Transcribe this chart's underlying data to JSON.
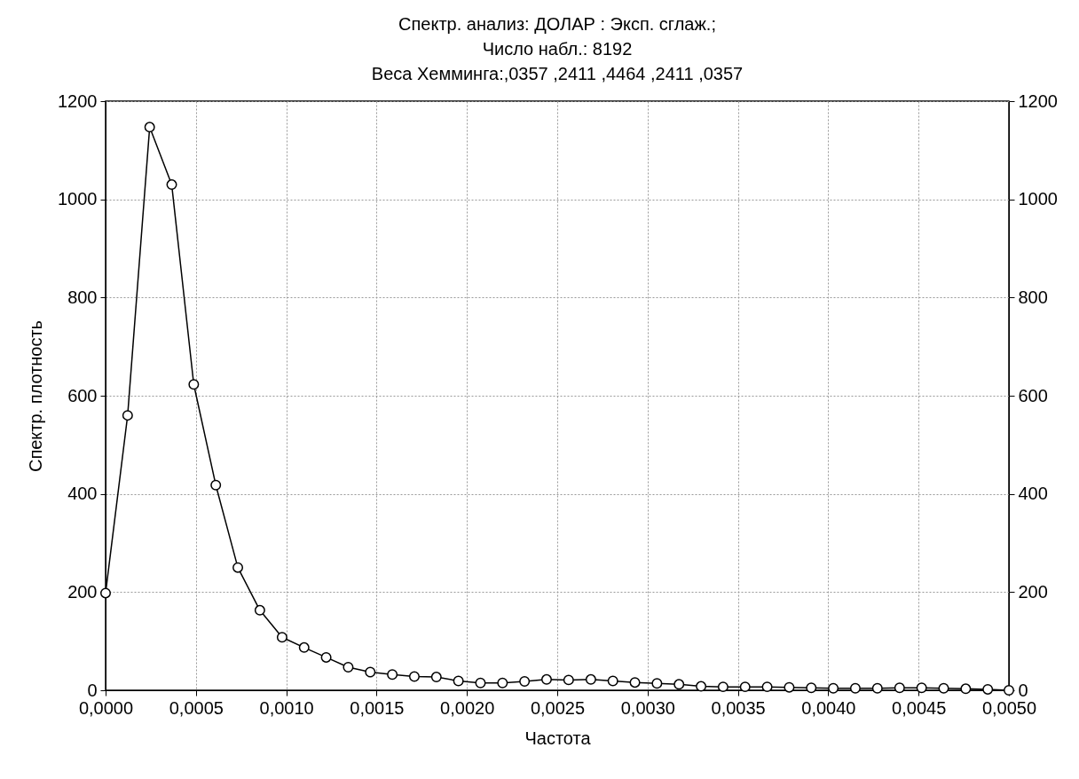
{
  "chart_data": {
    "type": "line",
    "title": "Спектр. анализ: ДОЛАР   : Эксп. сглаж.;\nЧисло набл.: 8192\nВеса Хемминга:,0357 ,2411 ,4464 ,2411 ,0357",
    "xlabel": "Частота",
    "ylabel": "Спектр. плотность",
    "x": [
      0,
      0.000122,
      0.000244,
      0.000366,
      0.000488,
      0.00061,
      0.000732,
      0.000854,
      0.000977,
      0.001099,
      0.001221,
      0.001343,
      0.001465,
      0.001587,
      0.001709,
      0.001831,
      0.001953,
      0.002075,
      0.002197,
      0.002319,
      0.002441,
      0.002563,
      0.002686,
      0.002808,
      0.00293,
      0.003052,
      0.003174,
      0.003296,
      0.003418,
      0.00354,
      0.003662,
      0.003784,
      0.003906,
      0.004028,
      0.00415,
      0.004272,
      0.004395,
      0.004517,
      0.004639,
      0.004761,
      0.004883,
      0.005
    ],
    "series": [
      {
        "color": "#000000",
        "values": [
          198,
          560,
          1147,
          1030,
          623,
          418,
          250,
          163,
          108,
          87,
          67,
          47,
          37,
          32,
          28,
          27,
          19,
          15,
          15,
          18,
          22,
          21,
          22,
          19,
          16,
          14,
          12,
          8,
          7,
          7,
          7,
          6,
          5,
          4,
          4,
          4,
          5,
          5,
          4,
          3,
          2,
          0
        ]
      }
    ],
    "xlim": [
      0,
      0.005
    ],
    "xticks": [
      {
        "value": 0,
        "label": "0,0000"
      },
      {
        "value": 0.0005,
        "label": "0,0005"
      },
      {
        "value": 0.001,
        "label": "0,0010"
      },
      {
        "value": 0.0015,
        "label": "0,0015"
      },
      {
        "value": 0.002,
        "label": "0,0020"
      },
      {
        "value": 0.0025,
        "label": "0,0025"
      },
      {
        "value": 0.003,
        "label": "0,0030"
      },
      {
        "value": 0.0035,
        "label": "0,0035"
      },
      {
        "value": 0.004,
        "label": "0,0040"
      },
      {
        "value": 0.0045,
        "label": "0,0045"
      },
      {
        "value": 0.005,
        "label": "0,0050"
      }
    ],
    "ylim": [
      0,
      1200
    ],
    "yticks": [
      0,
      200,
      400,
      600,
      800,
      1000,
      1200
    ],
    "y2lim": [
      0,
      1200
    ],
    "y2ticks": [
      0,
      200,
      400,
      600,
      800,
      1000,
      1200
    ],
    "grid": true,
    "marker": "circle",
    "line_style": "solid"
  }
}
